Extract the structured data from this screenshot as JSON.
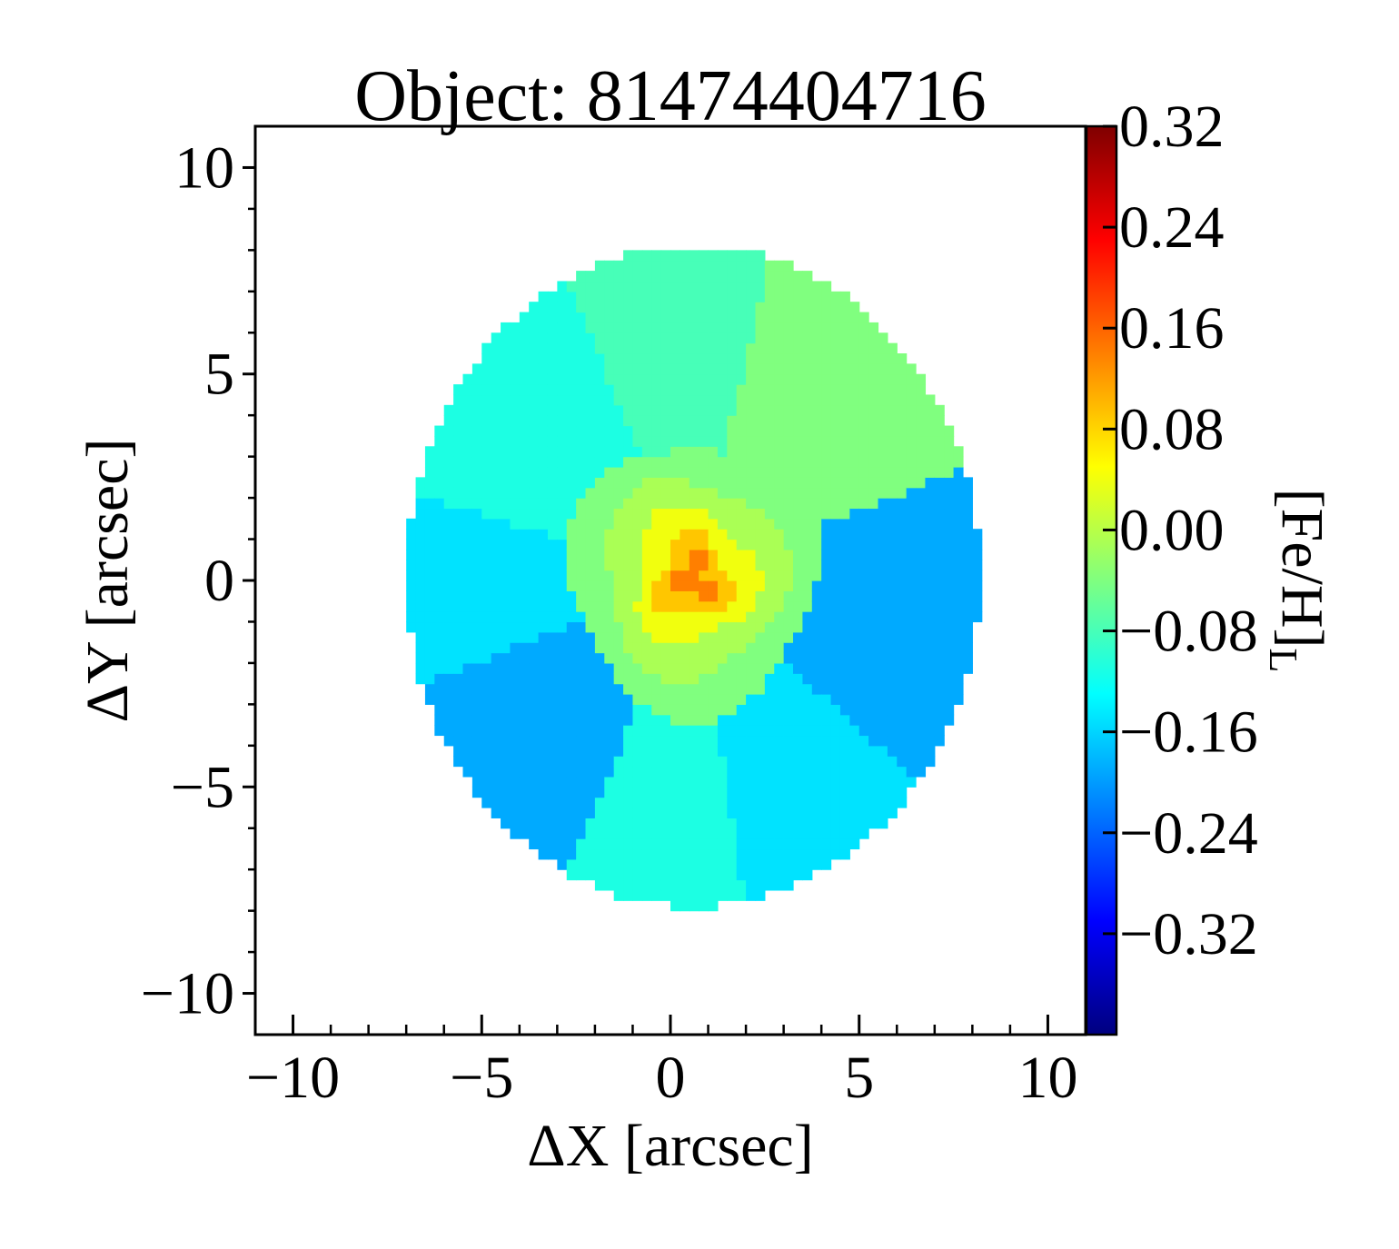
{
  "chart_data": {
    "type": "heatmap",
    "title": "Object: 81474404716",
    "xlabel": "ΔX [arcsec]",
    "ylabel": "ΔY [arcsec]",
    "xlim": [
      -11,
      11
    ],
    "ylim": [
      -11,
      11
    ],
    "x_ticks": [
      -10,
      -5,
      0,
      5,
      10
    ],
    "y_ticks": [
      -10,
      -5,
      0,
      5,
      10
    ],
    "x_tick_labels": [
      "−10",
      "−5",
      "0",
      "5",
      "10"
    ],
    "y_tick_labels": [
      "−10",
      "−5",
      "0",
      "5",
      "10"
    ],
    "colorbar": {
      "label": "[Fe/H]L",
      "label_main": "[Fe/H]",
      "label_sub": "L",
      "colormap": "jet",
      "vmin": -0.4,
      "vmax": 0.32,
      "ticks": [
        0.32,
        0.24,
        0.16,
        0.08,
        0.0,
        -0.08,
        -0.16,
        -0.24,
        -0.32
      ],
      "tick_labels": [
        "0.32",
        "0.24",
        "0.16",
        "0.08",
        "0.00",
        "−0.08",
        "−0.16",
        "−0.24",
        "−0.32"
      ]
    },
    "field": {
      "shape": "ellipse",
      "center": [
        0.6,
        0.1
      ],
      "semi_axis_x": 7.6,
      "semi_axis_y": 8.0
    },
    "bins": [
      {
        "region": "north",
        "angle_from": 75,
        "angle_to": 115,
        "value": -0.08
      },
      {
        "region": "north-east",
        "angle_from": 20,
        "angle_to": 75,
        "value": -0.04
      },
      {
        "region": "east",
        "angle_from": -40,
        "angle_to": 20,
        "value": -0.19
      },
      {
        "region": "south-east",
        "angle_from": -80,
        "angle_to": -40,
        "value": -0.15
      },
      {
        "region": "south",
        "angle_from": -115,
        "angle_to": -80,
        "value": -0.11
      },
      {
        "region": "south-west",
        "angle_from": -160,
        "angle_to": -115,
        "value": -0.19
      },
      {
        "region": "west",
        "angle_from": 165,
        "angle_to": 200,
        "value": -0.15
      },
      {
        "region": "north-west",
        "angle_from": 115,
        "angle_to": 165,
        "value": -0.11
      }
    ],
    "center_rings": [
      {
        "radius": 3.3,
        "value": -0.04
      },
      {
        "radius": 2.4,
        "value": -0.01
      },
      {
        "radius": 1.6,
        "value": 0.04
      },
      {
        "radius": 1.0,
        "value": 0.09
      },
      {
        "radius": 0.5,
        "value": 0.14
      }
    ]
  }
}
